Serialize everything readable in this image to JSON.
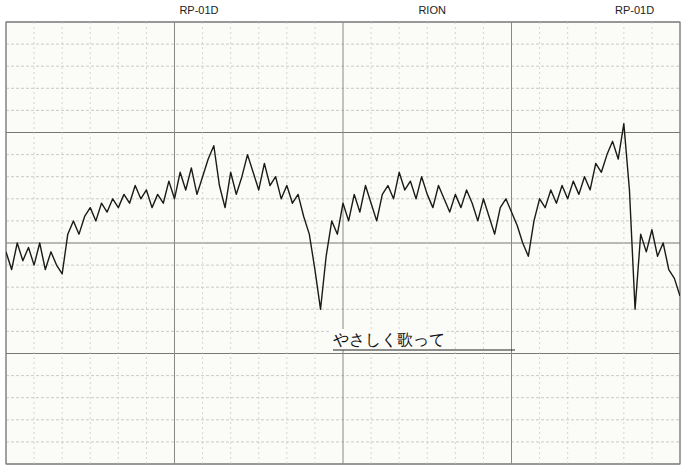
{
  "chart_data": {
    "type": "line",
    "header": [
      "RP-01D",
      "RION",
      "RP-01D"
    ],
    "annotations": [
      "やさしく歌って"
    ],
    "x": [
      0,
      1,
      2,
      3,
      4,
      5,
      6,
      7,
      8,
      9,
      10,
      11,
      12,
      13,
      14,
      15,
      16,
      17,
      18,
      19,
      20,
      21,
      22,
      23,
      24,
      25,
      26,
      27,
      28,
      29,
      30,
      31,
      32,
      33,
      34,
      35,
      36,
      37,
      38,
      39,
      40,
      41,
      42,
      43,
      44,
      45,
      46,
      47,
      48,
      49,
      50,
      51,
      52,
      53,
      54,
      55,
      56,
      57,
      58,
      59,
      60,
      61,
      62,
      63,
      64,
      65,
      66,
      67,
      68,
      69,
      70,
      71,
      72,
      73,
      74,
      75,
      76,
      77,
      78,
      79,
      80,
      81,
      82,
      83,
      84,
      85,
      86,
      87,
      88,
      89,
      90,
      91,
      92,
      93,
      94,
      95,
      96,
      97,
      98,
      99,
      100,
      101,
      102,
      103,
      104,
      105,
      106,
      107,
      108,
      109,
      110,
      111,
      112,
      113,
      114,
      115,
      116,
      117,
      118,
      119,
      120
    ],
    "values": [
      48,
      44,
      50,
      46,
      49,
      45,
      50,
      44,
      48,
      45,
      43,
      52,
      55,
      52,
      56,
      58,
      55,
      59,
      57,
      60,
      58,
      61,
      59,
      63,
      60,
      62,
      58,
      61,
      59,
      64,
      60,
      66,
      62,
      67,
      61,
      65,
      69,
      72,
      63,
      58,
      66,
      61,
      65,
      70,
      66,
      62,
      68,
      63,
      65,
      60,
      63,
      59,
      61,
      56,
      52,
      44,
      35,
      47,
      55,
      52,
      59,
      55,
      61,
      57,
      63,
      59,
      55,
      61,
      63,
      60,
      66,
      62,
      64,
      60,
      65,
      61,
      58,
      63,
      60,
      57,
      61,
      58,
      62,
      59,
      55,
      60,
      56,
      52,
      58,
      60,
      57,
      54,
      50,
      47,
      55,
      60,
      58,
      62,
      59,
      63,
      60,
      64,
      61,
      65,
      62,
      68,
      66,
      70,
      73,
      69,
      77,
      62,
      35,
      52,
      48,
      53,
      47,
      50,
      44,
      42,
      38
    ],
    "color": "#1a1a1a",
    "xlim": [
      0,
      120
    ],
    "ylim": [
      0,
      100
    ],
    "xticks": [
      0,
      5,
      10,
      15,
      20,
      25,
      30,
      35,
      40,
      45,
      50,
      55,
      60,
      65,
      70,
      75,
      80,
      85,
      90,
      95,
      100,
      105,
      110,
      115,
      120
    ],
    "yticks": [
      0,
      5,
      10,
      15,
      20,
      25,
      30,
      35,
      40,
      45,
      50,
      55,
      60,
      65,
      70,
      75,
      80,
      85,
      90,
      95,
      100
    ],
    "grid": true,
    "tick_labels": false
  }
}
